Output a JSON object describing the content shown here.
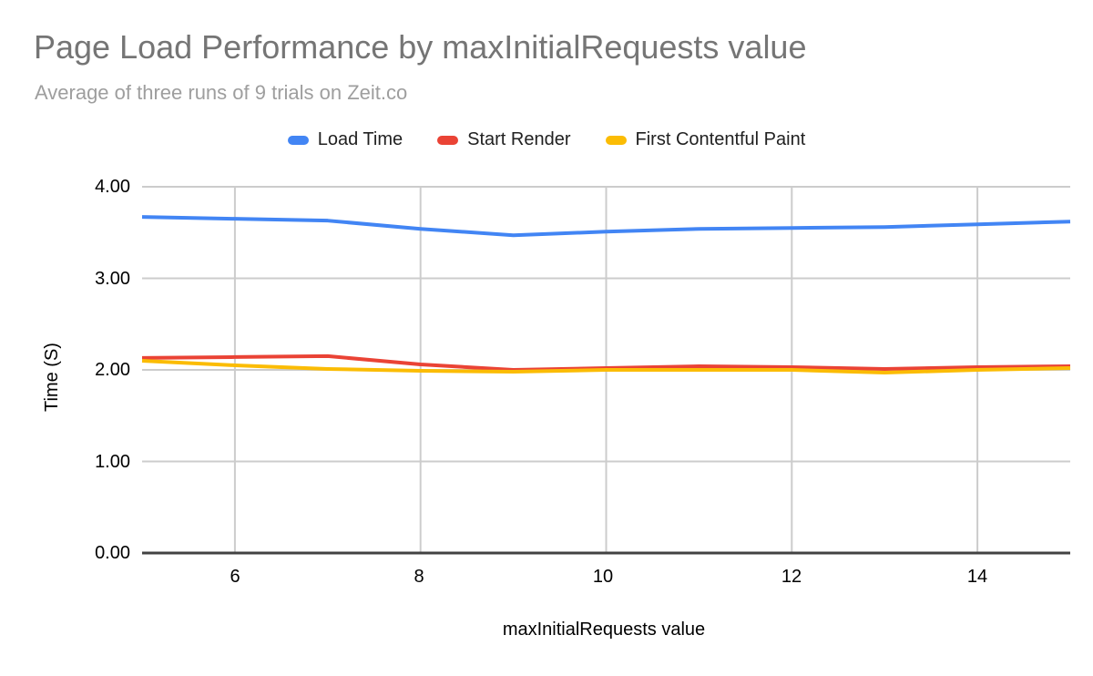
{
  "chart_data": {
    "type": "line",
    "title": "Page Load Performance by maxInitialRequests value",
    "subtitle": "Average of three runs of 9 trials on Zeit.co",
    "xlabel": "maxInitialRequests value",
    "ylabel": "Time (S)",
    "x": [
      5,
      6,
      7,
      8,
      9,
      10,
      11,
      12,
      13,
      14,
      15
    ],
    "series": [
      {
        "name": "Load Time",
        "color": "#4285F4",
        "values": [
          3.67,
          3.65,
          3.63,
          3.54,
          3.47,
          3.51,
          3.54,
          3.55,
          3.56,
          3.59,
          3.62
        ]
      },
      {
        "name": "Start Render",
        "color": "#EA4335",
        "values": [
          2.13,
          2.14,
          2.15,
          2.06,
          2.0,
          2.02,
          2.04,
          2.03,
          2.01,
          2.03,
          2.04
        ]
      },
      {
        "name": "First Contentful Paint",
        "color": "#FBBC04",
        "values": [
          2.1,
          2.05,
          2.01,
          1.99,
          1.98,
          2.0,
          2.0,
          2.0,
          1.97,
          2.0,
          2.02
        ]
      }
    ],
    "xlim": [
      5,
      15
    ],
    "ylim": [
      0,
      4
    ],
    "x_gridlines": [
      6,
      8,
      10,
      12,
      14
    ],
    "y_gridlines": [
      1,
      2,
      3,
      4
    ],
    "x_tick_labels": [
      "6",
      "8",
      "10",
      "12",
      "14"
    ],
    "y_tick_labels": [
      "4.00",
      "3.00",
      "2.00",
      "1.00",
      "0.00"
    ],
    "grid": true,
    "legend_position": "top",
    "gridline_color": "#cccccc",
    "axis_line_color": "#424242",
    "line_width": 4
  }
}
